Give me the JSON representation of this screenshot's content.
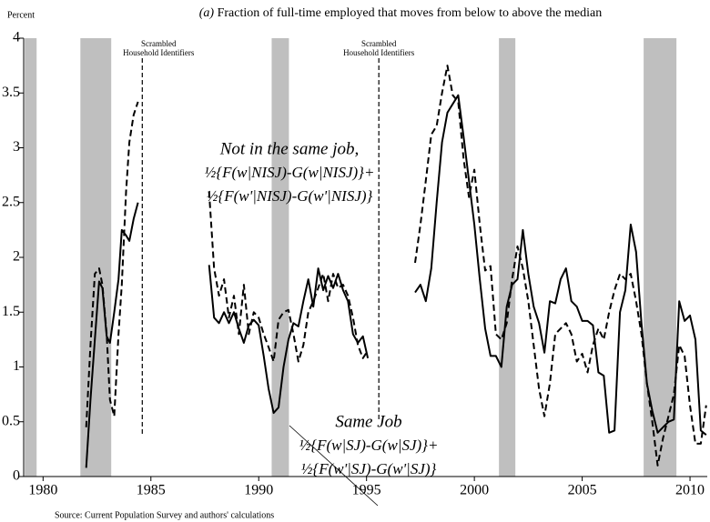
{
  "chart_data": {
    "type": "line",
    "title_tag": "(a)",
    "title": "Fraction of full-time employed that moves from below to above the median",
    "y_label": "Percent",
    "source": "Source: Current Population Survey and authors' calculations",
    "xlim": [
      1979.1,
      2010.8
    ],
    "xticks": [
      1980,
      1985,
      1990,
      1995,
      2000,
      2005,
      2010
    ],
    "ylim": [
      0,
      4
    ],
    "yticks": [
      0,
      0.5,
      1,
      1.5,
      2,
      2.5,
      3,
      3.5,
      4
    ],
    "recessions": [
      [
        1979.15,
        1979.7
      ],
      [
        1981.73,
        1983.16
      ],
      [
        1990.6,
        1991.4
      ],
      [
        2001.14,
        2001.9
      ],
      [
        2007.85,
        2009.37
      ]
    ],
    "breaks": [
      1984.6,
      1995.57
    ],
    "break_label": [
      "Scrambled",
      "Household Identifiers"
    ],
    "annotations": [
      {
        "lines": [
          "Not in the same job,",
          "½{F(w|NISJ)-G(w|NISJ)}+",
          "½{F(w'|NISJ)-G(w'|NISJ)}"
        ]
      },
      {
        "lines": [
          "Same Job",
          "½{F(w|SJ)-G(w|SJ)}+",
          "½{F(w'|SJ)-G(w'|SJ)}"
        ]
      }
    ],
    "x": [
      1982.0,
      1982.2,
      1982.4,
      1982.6,
      1982.75,
      1982.95,
      1983.1,
      1983.3,
      1983.5,
      1983.65,
      1983.85,
      1984.0,
      1984.2,
      1984.4,
      1986.0,
      1987.7,
      1987.93,
      1988.16,
      1988.39,
      1988.62,
      1988.85,
      1989.08,
      1989.31,
      1989.54,
      1989.77,
      1990.0,
      1990.23,
      1990.46,
      1990.69,
      1990.92,
      1991.15,
      1991.38,
      1991.61,
      1991.84,
      1992.07,
      1992.3,
      1992.53,
      1992.76,
      1992.99,
      1993.22,
      1993.45,
      1993.68,
      1993.91,
      1994.14,
      1994.37,
      1994.6,
      1994.83,
      1995.06,
      1996.0,
      1997.25,
      1997.5,
      1997.75,
      1998.0,
      1998.25,
      1998.5,
      1998.75,
      1999.0,
      1999.25,
      1999.5,
      1999.75,
      2000.0,
      2000.25,
      2000.5,
      2000.75,
      2001.0,
      2001.25,
      2001.5,
      2001.75,
      2002.0,
      2002.25,
      2002.5,
      2002.75,
      2003.0,
      2003.25,
      2003.5,
      2003.75,
      2004.0,
      2004.25,
      2004.5,
      2004.75,
      2005.0,
      2005.25,
      2005.5,
      2005.75,
      2006.0,
      2006.25,
      2006.5,
      2006.75,
      2007.0,
      2007.25,
      2007.5,
      2007.75,
      2008.0,
      2008.25,
      2008.5,
      2008.75,
      2009.0,
      2009.25,
      2009.5,
      2009.75,
      2010.0,
      2010.25,
      2010.5,
      2010.75
    ],
    "series": [
      {
        "name": "Same Job",
        "color": "#000000",
        "dash": false,
        "values": [
          0.08,
          0.7,
          1.25,
          1.78,
          1.72,
          1.28,
          1.22,
          1.5,
          1.8,
          2.25,
          2.2,
          2.15,
          2.35,
          2.5,
          null,
          1.93,
          1.45,
          1.4,
          1.5,
          1.4,
          1.5,
          1.35,
          1.22,
          1.38,
          1.43,
          1.38,
          1.1,
          0.8,
          0.58,
          0.63,
          1.0,
          1.25,
          1.4,
          1.37,
          1.6,
          1.8,
          1.55,
          1.9,
          1.7,
          1.83,
          1.72,
          1.85,
          1.7,
          1.6,
          1.3,
          1.22,
          1.28,
          1.08,
          null,
          1.68,
          1.75,
          1.6,
          1.9,
          2.5,
          3.05,
          3.32,
          3.4,
          3.48,
          3.1,
          2.7,
          2.3,
          1.8,
          1.35,
          1.1,
          1.1,
          1.0,
          1.55,
          1.75,
          1.8,
          2.25,
          1.85,
          1.55,
          1.4,
          1.13,
          1.6,
          1.58,
          1.8,
          1.9,
          1.6,
          1.55,
          1.42,
          1.42,
          1.38,
          0.95,
          0.92,
          0.4,
          0.42,
          1.5,
          1.7,
          2.3,
          2.05,
          1.4,
          0.85,
          0.6,
          0.4,
          0.45,
          0.5,
          0.52,
          1.6,
          1.42,
          1.47,
          1.25,
          0.42,
          0.38
        ]
      },
      {
        "name": "Not in the same job",
        "color": "#000000",
        "dash": true,
        "values": [
          0.45,
          1.2,
          1.85,
          1.9,
          1.75,
          1.3,
          0.7,
          0.55,
          1.3,
          1.75,
          2.6,
          3.05,
          3.3,
          3.42,
          null,
          2.6,
          1.9,
          1.65,
          1.8,
          1.45,
          1.65,
          1.3,
          1.75,
          1.3,
          1.5,
          1.45,
          1.3,
          1.18,
          1.05,
          1.43,
          1.5,
          1.52,
          1.3,
          1.05,
          1.2,
          1.5,
          1.6,
          1.72,
          1.85,
          1.6,
          1.85,
          1.72,
          1.75,
          1.65,
          1.45,
          1.2,
          1.08,
          1.15,
          null,
          1.95,
          2.3,
          2.7,
          3.12,
          3.2,
          3.5,
          3.75,
          3.48,
          3.42,
          2.9,
          2.55,
          2.8,
          2.3,
          1.88,
          1.92,
          1.3,
          1.25,
          1.4,
          1.8,
          2.1,
          1.9,
          1.6,
          1.2,
          0.8,
          0.55,
          0.85,
          1.3,
          1.35,
          1.4,
          1.3,
          1.05,
          1.12,
          0.95,
          1.2,
          1.35,
          1.25,
          1.5,
          1.7,
          1.85,
          1.8,
          1.85,
          1.6,
          1.3,
          0.85,
          0.5,
          0.1,
          0.35,
          0.55,
          0.75,
          1.2,
          1.1,
          0.65,
          0.3,
          0.3,
          0.65
        ]
      }
    ]
  }
}
